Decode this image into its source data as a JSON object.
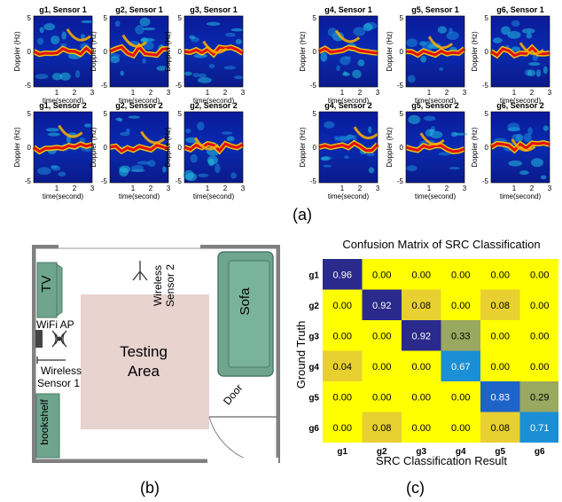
{
  "panel_a": {
    "caption": "(a)",
    "axis": {
      "ylabel": "Doppler (Hz)",
      "xlabel": "time(second)",
      "y_ticks": [
        "5",
        "0",
        "-5"
      ],
      "x_ticks": [
        "1",
        "2",
        "3"
      ]
    },
    "plots": [
      {
        "gesture": "g1",
        "sensor": "Sensor 1"
      },
      {
        "gesture": "g2",
        "sensor": "Sensor 1"
      },
      {
        "gesture": "g3",
        "sensor": "Sensor 1"
      },
      {
        "gesture": "g1",
        "sensor": "Sensor 2"
      },
      {
        "gesture": "g2",
        "sensor": "Sensor 2"
      },
      {
        "gesture": "g2",
        "sensor": "Sensor 2"
      },
      {
        "gesture": "g4",
        "sensor": "Sensor 1"
      },
      {
        "gesture": "g5",
        "sensor": "Sensor 1"
      },
      {
        "gesture": "g6",
        "sensor": "Sensor 1"
      },
      {
        "gesture": "g4",
        "sensor": "Sensor 2"
      },
      {
        "gesture": "g5",
        "sensor": "Sensor 2"
      },
      {
        "gesture": "g6",
        "sensor": "Sensor 2"
      }
    ]
  },
  "panel_b": {
    "caption": "(b)",
    "labels": {
      "tv": "TV",
      "wifi": "WiFi AP",
      "sensor1_line1": "Wireless",
      "sensor1_line2": "Sensor 1",
      "sensor2_line1": "Wireless",
      "sensor2_line2": "Sensor 2",
      "testing_line1": "Testing",
      "testing_line2": "Area",
      "sofa": "Sofa",
      "door": "Door",
      "bookshelf": "bookshelf"
    },
    "colors": {
      "wall": "#808080",
      "furniture": "#6fa58f",
      "area": "#e8d3cf"
    }
  },
  "panel_c": {
    "caption": "(c)",
    "colors": {
      "high": "#2a2a8c",
      "mid_blue": "#1e64c8",
      "teal": "#1a8fd6",
      "olive": "#9aa860",
      "light": "#e8d030",
      "base": "#ffff00"
    }
  },
  "chart_data": {
    "type": "heatmap",
    "title": "Confusion Matrix of SRC Classification",
    "xlabel": "SRC Classification Result",
    "ylabel": "Ground Truth",
    "x_categories": [
      "g1",
      "g2",
      "g3",
      "g4",
      "g5",
      "g6"
    ],
    "y_categories": [
      "g1",
      "g2",
      "g3",
      "g4",
      "g5",
      "g6"
    ],
    "values": [
      [
        0.96,
        0.0,
        0.0,
        0.0,
        0.0,
        0.0
      ],
      [
        0.0,
        0.92,
        0.08,
        0.0,
        0.08,
        0.0
      ],
      [
        0.0,
        0.0,
        0.92,
        0.33,
        0.0,
        0.0
      ],
      [
        0.04,
        0.0,
        0.0,
        0.67,
        0.0,
        0.0
      ],
      [
        0.0,
        0.0,
        0.0,
        0.0,
        0.83,
        0.29
      ],
      [
        0.0,
        0.08,
        0.0,
        0.0,
        0.08,
        0.71
      ]
    ],
    "value_labels": [
      [
        "0.96",
        "0.00",
        "0.00",
        "0.00",
        "0.00",
        "0.00"
      ],
      [
        "0.00",
        "0.92",
        "0.08",
        "0.00",
        "0.08",
        "0.00"
      ],
      [
        "0.00",
        "0.00",
        "0.92",
        "0.33",
        "0.00",
        "0.00"
      ],
      [
        "0.04",
        "0.00",
        "0.00",
        "0.67",
        "0.00",
        "0.00"
      ],
      [
        "0.00",
        "0.00",
        "0.00",
        "0.00",
        "0.83",
        "0.29"
      ],
      [
        "0.00",
        "0.08",
        "0.00",
        "0.00",
        "0.08",
        "0.71"
      ]
    ]
  }
}
